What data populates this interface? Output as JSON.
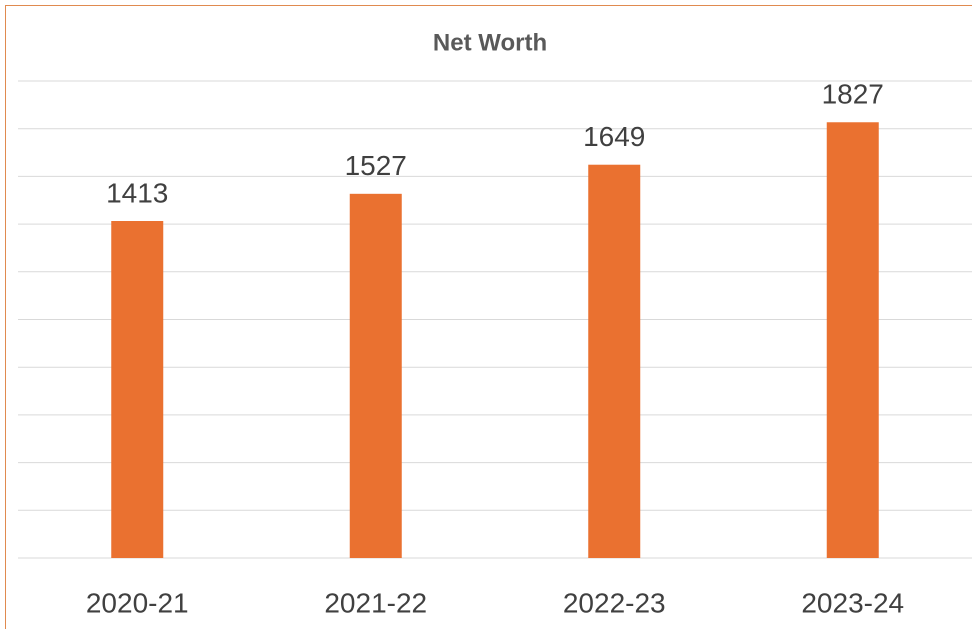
{
  "chart_data": {
    "type": "bar",
    "title": "Net Worth",
    "categories": [
      "2020-21",
      "2021-22",
      "2022-23",
      "2023-24"
    ],
    "values": [
      1413,
      1527,
      1649,
      1827
    ],
    "color": "#ea7130",
    "ylim": [
      0,
      2000
    ],
    "yticks": [
      0,
      200,
      400,
      600,
      800,
      1000,
      1200,
      1400,
      1600,
      1800,
      2000
    ],
    "grid": true
  }
}
